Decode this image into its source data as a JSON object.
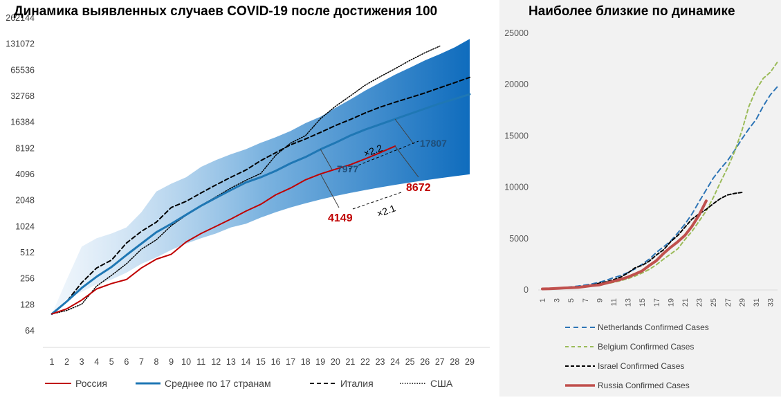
{
  "chart_data": [
    {
      "type": "line",
      "title": "Динамика выявленных случаев COVID-19 после достижения 100",
      "y_scale": "log2",
      "ylim": [
        64,
        262144
      ],
      "y_ticks": [
        "64",
        "128",
        "256",
        "512",
        "1024",
        "2048",
        "4096",
        "8192",
        "16384",
        "32768",
        "65536",
        "131072",
        "262144"
      ],
      "x_ticks": [
        "1",
        "2",
        "3",
        "4",
        "5",
        "6",
        "7",
        "8",
        "9",
        "10",
        "11",
        "12",
        "13",
        "14",
        "15",
        "16",
        "17",
        "18",
        "19",
        "20",
        "21",
        "22",
        "23",
        "24",
        "25",
        "26",
        "27",
        "28",
        "29"
      ],
      "band": {
        "upper": [
          100,
          250,
          600,
          750,
          850,
          1000,
          1500,
          2600,
          3200,
          3800,
          5000,
          6000,
          7000,
          8000,
          9500,
          11000,
          13000,
          16000,
          19000,
          24000,
          30000,
          38000,
          47000,
          58000,
          70000,
          85000,
          100000,
          120000,
          150000
        ],
        "lower": [
          100,
          150,
          180,
          220,
          250,
          300,
          380,
          450,
          550,
          650,
          750,
          850,
          1000,
          1100,
          1300,
          1500,
          1700,
          1900,
          2100,
          2300,
          2500,
          2700,
          2900,
          3100,
          3300,
          3500,
          3700,
          3900,
          4100
        ]
      },
      "series": [
        {
          "name": "Россия",
          "color": "#c00000",
          "width": 2,
          "dash": "",
          "values": [
            100,
            115,
            145,
            195,
            225,
            250,
            340,
            430,
            490,
            680,
            850,
            1030,
            1250,
            1540,
            1850,
            2380,
            2850,
            3550,
            4149,
            4690,
            5300,
            6200,
            7300,
            8672
          ]
        },
        {
          "name": "Среднее по 17 странам",
          "color": "#1f77b4",
          "width": 3,
          "dash": "",
          "values": [
            100,
            140,
            200,
            270,
            350,
            480,
            650,
            880,
            1100,
            1400,
            1780,
            2200,
            2700,
            3300,
            3800,
            4500,
            5500,
            6500,
            7977,
            9500,
            11500,
            13500,
            15500,
            17807,
            20500,
            23500,
            27000,
            30500,
            34500
          ]
        },
        {
          "name": "Италия",
          "color": "#000000",
          "width": 2,
          "dash": "6 4",
          "values": [
            100,
            140,
            230,
            340,
            420,
            660,
            900,
            1150,
            1700,
            2000,
            2500,
            3100,
            3800,
            4600,
            5900,
            7300,
            9000,
            10500,
            12500,
            15000,
            17600,
            21000,
            24500,
            27900,
            31500,
            35700,
            41000,
            47000,
            54000
          ]
        },
        {
          "name": "США",
          "color": "#000000",
          "width": 1.5,
          "dash": "1.5 2",
          "values": [
            100,
            110,
            130,
            210,
            280,
            380,
            560,
            720,
            1050,
            1380,
            1800,
            2250,
            2850,
            3500,
            4200,
            6800,
            9400,
            11500,
            18000,
            25000,
            33000,
            44000,
            55000,
            68000,
            85000,
            104000,
            124000
          ]
        }
      ],
      "annotations": [
        {
          "text": "4149",
          "color": "#c00000"
        },
        {
          "text": "8672",
          "color": "#c00000"
        },
        {
          "text": "7977",
          "color": "#1f4e79"
        },
        {
          "text": "17807",
          "color": "#1f4e79"
        },
        {
          "text": "×2.2",
          "color": "#000000"
        },
        {
          "text": "×2.1",
          "color": "#000000"
        }
      ],
      "legend_position": "bottom"
    },
    {
      "type": "line",
      "title": "Наиболее близкие по динамике",
      "ylim": [
        0,
        25000
      ],
      "y_ticks": [
        "0",
        "5000",
        "10000",
        "15000",
        "20000",
        "25000"
      ],
      "x_ticks": [
        "1",
        "3",
        "5",
        "7",
        "9",
        "11",
        "13",
        "15",
        "17",
        "19",
        "21",
        "23",
        "25",
        "27",
        "29",
        "31",
        "33"
      ],
      "series": [
        {
          "name": "Netherlands Confirmed Cases",
          "color": "#2e75b6",
          "width": 2,
          "dash": "7 5",
          "values": [
            100,
            130,
            170,
            230,
            300,
            380,
            480,
            600,
            750,
            950,
            1200,
            1400,
            1700,
            2050,
            2500,
            3000,
            3650,
            4200,
            4750,
            5550,
            6400,
            7400,
            8600,
            9750,
            10900,
            11800,
            12600,
            13600,
            14700,
            15700,
            16600,
            17900,
            19000,
            19800
          ]
        },
        {
          "name": "Belgium Confirmed Cases",
          "color": "#9bbb59",
          "width": 2,
          "dash": "5 4",
          "values": [
            100,
            120,
            150,
            180,
            220,
            280,
            350,
            420,
            500,
            600,
            750,
            900,
            1100,
            1350,
            1650,
            2000,
            2450,
            3000,
            3500,
            4000,
            4900,
            5700,
            6700,
            7700,
            9000,
            10500,
            11900,
            13500,
            15500,
            17900,
            19500,
            20600,
            21200,
            22200
          ]
        },
        {
          "name": "Israel Confirmed Cases",
          "color": "#000000",
          "width": 2,
          "dash": "5 3",
          "values": [
            100,
            120,
            150,
            190,
            240,
            310,
            390,
            500,
            660,
            800,
            1000,
            1250,
            1650,
            2150,
            2400,
            2800,
            3400,
            3900,
            4700,
            5300,
            6100,
            6900,
            7400,
            7850,
            8400,
            8900,
            9250,
            9400,
            9500
          ]
        },
        {
          "name": "Russia Confirmed Cases",
          "color": "#c0504d",
          "width": 4,
          "dash": "",
          "values": [
            100,
            115,
            145,
            195,
            225,
            250,
            340,
            430,
            490,
            680,
            850,
            1030,
            1250,
            1540,
            1850,
            2380,
            2850,
            3550,
            4149,
            4690,
            5300,
            6200,
            7300,
            8672
          ]
        }
      ],
      "legend_position": "bottom"
    }
  ]
}
